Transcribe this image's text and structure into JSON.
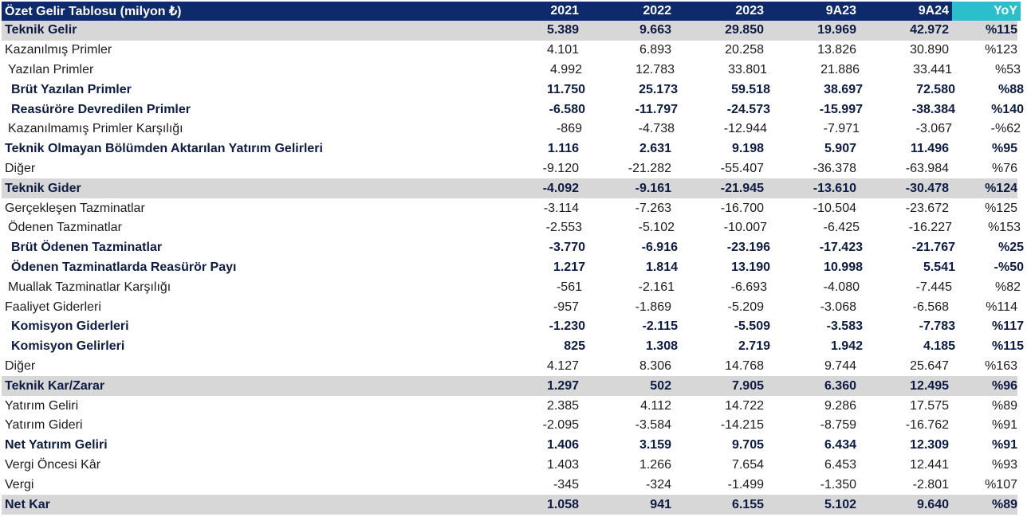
{
  "table": {
    "title": "Özet Gelir Tablosu (milyon ₺)",
    "columns": [
      "2021",
      "2022",
      "2023",
      "9A23",
      "9A24",
      "YoY"
    ],
    "rows": [
      {
        "label": "Teknik Gelir",
        "style": "shaded",
        "indent": 0,
        "values": [
          "5.389",
          "9.663",
          "29.850",
          "19.969",
          "42.972",
          "%115"
        ]
      },
      {
        "label": "Kazanılmış Primler",
        "style": "normal",
        "indent": 0,
        "values": [
          "4.101",
          "6.893",
          "20.258",
          "13.826",
          "30.890",
          "%123"
        ]
      },
      {
        "label": "Yazılan Primler",
        "style": "normal",
        "indent": 1,
        "values": [
          "4.992",
          "12.783",
          "33.801",
          "21.886",
          "33.441",
          "%53"
        ]
      },
      {
        "label": "Brüt Yazılan Primler",
        "style": "bold",
        "indent": 2,
        "values": [
          "11.750",
          "25.173",
          "59.518",
          "38.697",
          "72.580",
          "%88"
        ]
      },
      {
        "label": "Reasüröre Devredilen Primler",
        "style": "bold",
        "indent": 2,
        "values": [
          "-6.580",
          "-11.797",
          "-24.573",
          "-15.997",
          "-38.384",
          "%140"
        ]
      },
      {
        "label": "Kazanılmamış Primler Karşılığı",
        "style": "normal",
        "indent": 1,
        "values": [
          "-869",
          "-4.738",
          "-12.944",
          "-7.971",
          "-3.067",
          "-%62"
        ]
      },
      {
        "label": "Teknik Olmayan Bölümden Aktarılan Yatırım Gelirleri",
        "style": "bold",
        "indent": 0,
        "values": [
          "1.116",
          "2.631",
          "9.198",
          "5.907",
          "11.496",
          "%95"
        ]
      },
      {
        "label": "Diğer",
        "style": "normal",
        "indent": 0,
        "values": [
          "-9.120",
          "-21.282",
          "-55.407",
          "-36.378",
          "-63.984",
          "%76"
        ]
      },
      {
        "label": "Teknik Gider",
        "style": "shaded",
        "indent": 0,
        "values": [
          "-4.092",
          "-9.161",
          "-21.945",
          "-13.610",
          "-30.478",
          "%124"
        ]
      },
      {
        "label": "Gerçekleşen Tazminatlar",
        "style": "normal",
        "indent": 0,
        "values": [
          "-3.114",
          "-7.263",
          "-16.700",
          "-10.504",
          "-23.672",
          "%125"
        ]
      },
      {
        "label": "Ödenen Tazminatlar",
        "style": "normal",
        "indent": 1,
        "values": [
          "-2.553",
          "-5.102",
          "-10.007",
          "-6.425",
          "-16.227",
          "%153"
        ]
      },
      {
        "label": "Brüt Ödenen Tazminatlar",
        "style": "bold",
        "indent": 2,
        "values": [
          "-3.770",
          "-6.916",
          "-23.196",
          "-17.423",
          "-21.767",
          "%25"
        ]
      },
      {
        "label": "Ödenen Tazminatlarda Reasürör Payı",
        "style": "bold",
        "indent": 2,
        "values": [
          "1.217",
          "1.814",
          "13.190",
          "10.998",
          "5.541",
          "-%50"
        ]
      },
      {
        "label": "Muallak Tazminatlar Karşılığı",
        "style": "normal",
        "indent": 1,
        "values": [
          "-561",
          "-2.161",
          "-6.693",
          "-4.080",
          "-7.445",
          "%82"
        ]
      },
      {
        "label": "Faaliyet Giderleri",
        "style": "normal",
        "indent": 0,
        "values": [
          "-957",
          "-1.869",
          "-5.209",
          "-3.068",
          "-6.568",
          "%114"
        ]
      },
      {
        "label": "Komisyon Giderleri",
        "style": "bold",
        "indent": 2,
        "values": [
          "-1.230",
          "-2.115",
          "-5.509",
          "-3.583",
          "-7.783",
          "%117"
        ]
      },
      {
        "label": "Komisyon Gelirleri",
        "style": "bold",
        "indent": 2,
        "values": [
          "825",
          "1.308",
          "2.719",
          "1.942",
          "4.185",
          "%115"
        ]
      },
      {
        "label": "Diğer",
        "style": "normal",
        "indent": 0,
        "values": [
          "4.127",
          "8.306",
          "14.768",
          "9.744",
          "25.647",
          "%163"
        ]
      },
      {
        "label": "Teknik Kar/Zarar",
        "style": "shaded",
        "indent": 0,
        "values": [
          "1.297",
          "502",
          "7.905",
          "6.360",
          "12.495",
          "%96"
        ]
      },
      {
        "label": "Yatırım Geliri",
        "style": "normal",
        "indent": 0,
        "values": [
          "2.385",
          "4.112",
          "14.722",
          "9.286",
          "17.575",
          "%89"
        ]
      },
      {
        "label": "Yatırım Gideri",
        "style": "normal",
        "indent": 0,
        "values": [
          "-2.095",
          "-3.584",
          "-14.215",
          "-8.759",
          "-16.762",
          "%91"
        ]
      },
      {
        "label": "Net Yatırım Geliri",
        "style": "bold",
        "indent": 0,
        "values": [
          "1.406",
          "3.159",
          "9.705",
          "6.434",
          "12.309",
          "%91"
        ]
      },
      {
        "label": "Vergi Öncesi Kâr",
        "style": "normal",
        "indent": 0,
        "values": [
          "1.403",
          "1.266",
          "7.654",
          "6.453",
          "12.441",
          "%93"
        ]
      },
      {
        "label": "Vergi",
        "style": "normal",
        "indent": 0,
        "values": [
          "-345",
          "-324",
          "-1.499",
          "-1.350",
          "-2.801",
          "%107"
        ]
      },
      {
        "label": "Net Kar",
        "style": "shaded",
        "indent": 0,
        "values": [
          "1.058",
          "941",
          "6.155",
          "5.102",
          "9.640",
          "%89"
        ]
      }
    ]
  },
  "colors": {
    "header_bg": "#0d2a6b",
    "yoy_header_bg": "#2bbfcc",
    "shaded_row_bg": "#d7d7d7",
    "bold_text": "#0e1b43"
  }
}
